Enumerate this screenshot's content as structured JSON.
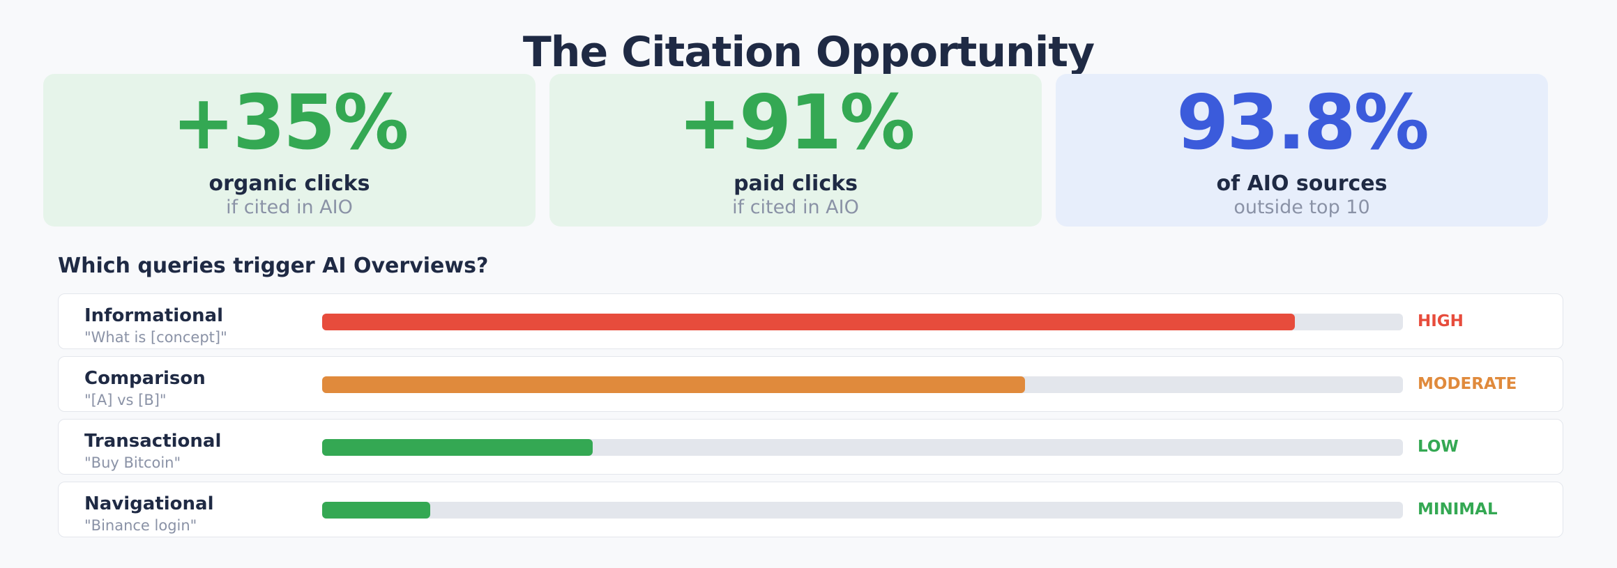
{
  "header": {
    "title": "The Citation Opportunity"
  },
  "stats": [
    {
      "value": "+35%",
      "label": "organic clicks",
      "sublabel": "if cited in AIO",
      "color": "#34a853",
      "background": "#e6f4ea"
    },
    {
      "value": "+91%",
      "label": "paid clicks",
      "sublabel": "if cited in AIO",
      "color": "#34a853",
      "background": "#e6f4ea"
    },
    {
      "value": "93.8%",
      "label": "of AIO sources",
      "sublabel": "outside top 10",
      "color": "#3b5bdb",
      "background": "#e7eefb"
    }
  ],
  "chart_data": {
    "type": "bar",
    "title": "Which queries trigger AI Overviews?",
    "categories": [
      "Informational",
      "Comparison",
      "Transactional",
      "Navigational"
    ],
    "examples": [
      "\"What is [concept]\"",
      "\"[A] vs [B]\"",
      "\"Buy Bitcoin\"",
      "\"Binance login\""
    ],
    "values": [
      90,
      65,
      25,
      10
    ],
    "value_labels": [
      "HIGH",
      "MODERATE",
      "LOW",
      "MINIMAL"
    ],
    "colors": [
      "#e74c3c",
      "#e08a3c",
      "#34a853",
      "#34a853"
    ],
    "xlim": [
      0,
      100
    ]
  }
}
